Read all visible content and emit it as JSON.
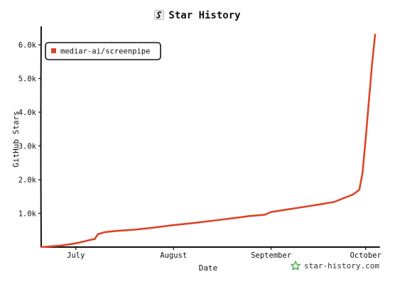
{
  "chart_data": {
    "type": "line",
    "title": "Star History",
    "xlabel": "Date",
    "ylabel": "GitHub Stars",
    "x_tick_labels": [
      "July",
      "August",
      "September",
      "October"
    ],
    "y_tick_labels": [
      "1.0k",
      "2.0k",
      "3.0k",
      "4.0k",
      "5.0k",
      "6.0k"
    ],
    "y_ticks": [
      1000,
      2000,
      3000,
      4000,
      5000,
      6000
    ],
    "ylim": [
      0,
      6400
    ],
    "x_range": [
      "2024-06-20",
      "2024-10-04"
    ],
    "x_ticks": [
      "2024-07-01",
      "2024-08-01",
      "2024-09-01",
      "2024-10-01"
    ],
    "legend_position": "top-left",
    "series": [
      {
        "name": "mediar-ai/screenpipe",
        "color": "#dd4528",
        "points": [
          [
            "2024-06-20",
            0
          ],
          [
            "2024-06-23",
            20
          ],
          [
            "2024-06-26",
            45
          ],
          [
            "2024-06-29",
            80
          ],
          [
            "2024-07-02",
            130
          ],
          [
            "2024-07-05",
            200
          ],
          [
            "2024-07-07",
            240
          ],
          [
            "2024-07-08",
            380
          ],
          [
            "2024-07-10",
            440
          ],
          [
            "2024-07-14",
            480
          ],
          [
            "2024-07-20",
            520
          ],
          [
            "2024-07-25",
            570
          ],
          [
            "2024-08-01",
            650
          ],
          [
            "2024-08-08",
            720
          ],
          [
            "2024-08-15",
            800
          ],
          [
            "2024-08-22",
            880
          ],
          [
            "2024-08-25",
            920
          ],
          [
            "2024-08-30",
            960
          ],
          [
            "2024-09-01",
            1040
          ],
          [
            "2024-09-05",
            1100
          ],
          [
            "2024-09-10",
            1170
          ],
          [
            "2024-09-14",
            1230
          ],
          [
            "2024-09-18",
            1290
          ],
          [
            "2024-09-21",
            1340
          ],
          [
            "2024-09-24",
            1450
          ],
          [
            "2024-09-27",
            1560
          ],
          [
            "2024-09-29",
            1700
          ],
          [
            "2024-09-30",
            2200
          ],
          [
            "2024-10-01",
            3200
          ],
          [
            "2024-10-02",
            4300
          ],
          [
            "2024-10-03",
            5400
          ],
          [
            "2024-10-04",
            6300
          ]
        ]
      }
    ]
  },
  "watermark": "star-history.com",
  "colors": {
    "line": "#dd4528",
    "axis": "#111111",
    "watermark_icon": "#4caf50"
  }
}
